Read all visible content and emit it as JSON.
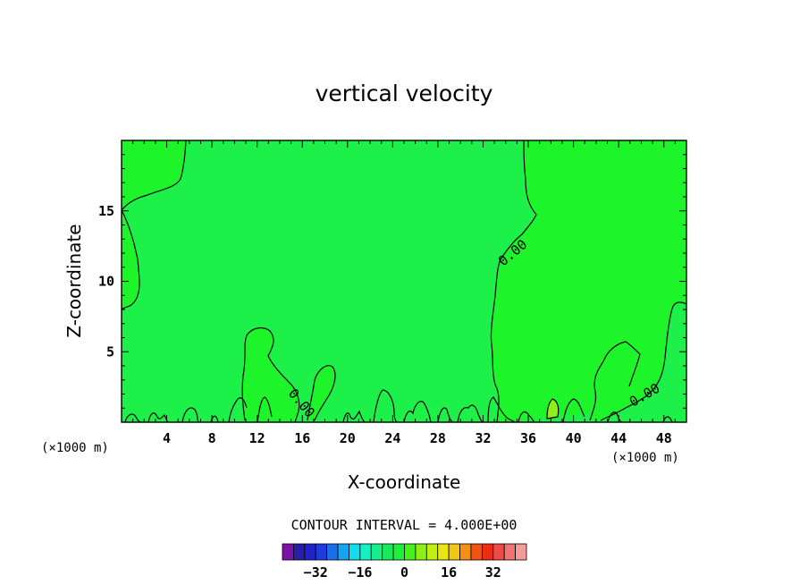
{
  "chart_data": {
    "type": "contour",
    "title": "vertical velocity",
    "xlabel": "X-coordinate",
    "ylabel": "Z-coordinate",
    "x_unit": "(×1000 m)",
    "x_unit_left": "(×1000 m)",
    "xlim": [
      0,
      50
    ],
    "ylim": [
      0,
      20
    ],
    "x_ticks": [
      4,
      8,
      12,
      16,
      20,
      24,
      28,
      32,
      36,
      40,
      44,
      48
    ],
    "y_ticks": [
      5,
      10,
      15
    ],
    "contour_label": "0.00",
    "contour_interval_text": "CONTOUR INTERVAL = 4.000E+00",
    "colorbar": {
      "levels": [
        -32,
        -16,
        0,
        16,
        32
      ],
      "labels": [
        "−32",
        "−16",
        "0",
        "16",
        "32"
      ],
      "colors": [
        "#7d12a8",
        "#2a1ea6",
        "#1f23c8",
        "#1f3bdc",
        "#1a6ee8",
        "#15a4f2",
        "#14dcec",
        "#15f2c2",
        "#16ee8c",
        "#18ea5e",
        "#1cf03a",
        "#46f21c",
        "#8cf014",
        "#c2ee14",
        "#eae614",
        "#f2c614",
        "#f48e14",
        "#f05414",
        "#ee2c14",
        "#ee4a46",
        "#f07474",
        "#f29c9c"
      ]
    },
    "fill_colors": {
      "negative_small": "#1ef04a",
      "positive_small": "#1ef42a",
      "positive_peak": "#8ef014"
    }
  }
}
